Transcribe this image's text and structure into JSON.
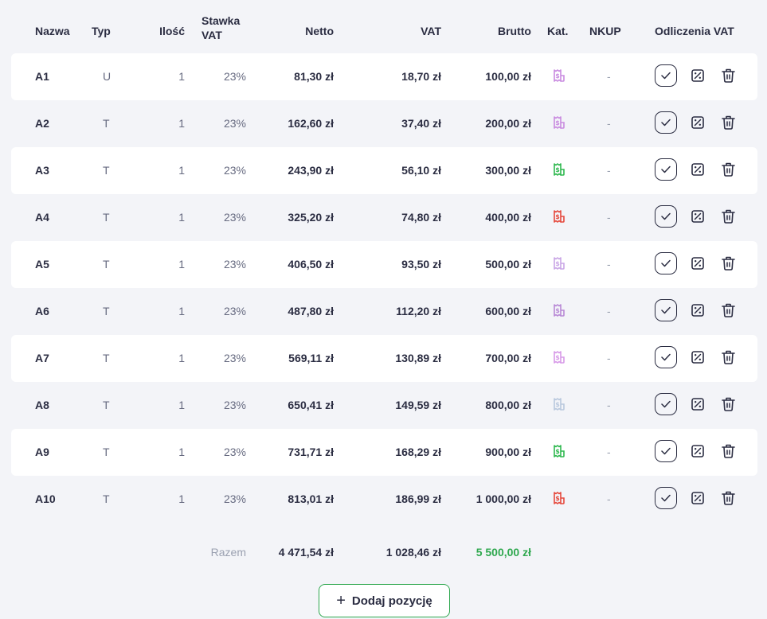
{
  "headers": {
    "nazwa": "Nazwa",
    "typ": "Typ",
    "ilosc": "Ilość",
    "stawka_line1": "Stawka",
    "stawka_line2": "VAT",
    "netto": "Netto",
    "vat": "VAT",
    "brutto": "Brutto",
    "kat": "Kat.",
    "nkup": "NKUP",
    "odliczenia": "Odliczenia VAT"
  },
  "rows": [
    {
      "name": "A1",
      "typ": "U",
      "ilosc": "1",
      "stawka": "23%",
      "netto": "81,30 zł",
      "vat": "18,70 zł",
      "brutto": "100,00 zł",
      "nkup": "-",
      "kat_color": "#c98be0"
    },
    {
      "name": "A2",
      "typ": "T",
      "ilosc": "1",
      "stawka": "23%",
      "netto": "162,60 zł",
      "vat": "37,40 zł",
      "brutto": "200,00 zł",
      "nkup": "-",
      "kat_color": "#c98be0"
    },
    {
      "name": "A3",
      "typ": "T",
      "ilosc": "1",
      "stawka": "23%",
      "netto": "243,90 zł",
      "vat": "56,10 zł",
      "brutto": "300,00 zł",
      "nkup": "-",
      "kat_color": "#2fb84f"
    },
    {
      "name": "A4",
      "typ": "T",
      "ilosc": "1",
      "stawka": "23%",
      "netto": "325,20 zł",
      "vat": "74,80 zł",
      "brutto": "400,00 zł",
      "nkup": "-",
      "kat_color": "#e5483c"
    },
    {
      "name": "A5",
      "typ": "T",
      "ilosc": "1",
      "stawka": "23%",
      "netto": "406,50 zł",
      "vat": "93,50 zł",
      "brutto": "500,00 zł",
      "nkup": "-",
      "kat_color": "#c9a6e6"
    },
    {
      "name": "A6",
      "typ": "T",
      "ilosc": "1",
      "stawka": "23%",
      "netto": "487,80 zł",
      "vat": "112,20 zł",
      "brutto": "600,00 zł",
      "nkup": "-",
      "kat_color": "#b889d6"
    },
    {
      "name": "A7",
      "typ": "T",
      "ilosc": "1",
      "stawka": "23%",
      "netto": "569,11 zł",
      "vat": "130,89 zł",
      "brutto": "700,00 zł",
      "nkup": "-",
      "kat_color": "#d79ae8"
    },
    {
      "name": "A8",
      "typ": "T",
      "ilosc": "1",
      "stawka": "23%",
      "netto": "650,41 zł",
      "vat": "149,59 zł",
      "brutto": "800,00 zł",
      "nkup": "-",
      "kat_color": "#b9c8de"
    },
    {
      "name": "A9",
      "typ": "T",
      "ilosc": "1",
      "stawka": "23%",
      "netto": "731,71 zł",
      "vat": "168,29 zł",
      "brutto": "900,00 zł",
      "nkup": "-",
      "kat_color": "#2fb84f"
    },
    {
      "name": "A10",
      "typ": "T",
      "ilosc": "1",
      "stawka": "23%",
      "netto": "813,01 zł",
      "vat": "186,99 zł",
      "brutto": "1 000,00 zł",
      "nkup": "-",
      "kat_color": "#e5483c"
    }
  ],
  "totals": {
    "label": "Razem",
    "netto": "4 471,54 zł",
    "vat": "1 028,46 zł",
    "brutto": "5 500,00 zł"
  },
  "add_button": {
    "label": "Dodaj pozycję"
  },
  "colors": {
    "accent_green": "#2fa84f",
    "text_dark": "#2b2d42",
    "row_white": "#ffffff",
    "background": "#f3f4f8"
  }
}
